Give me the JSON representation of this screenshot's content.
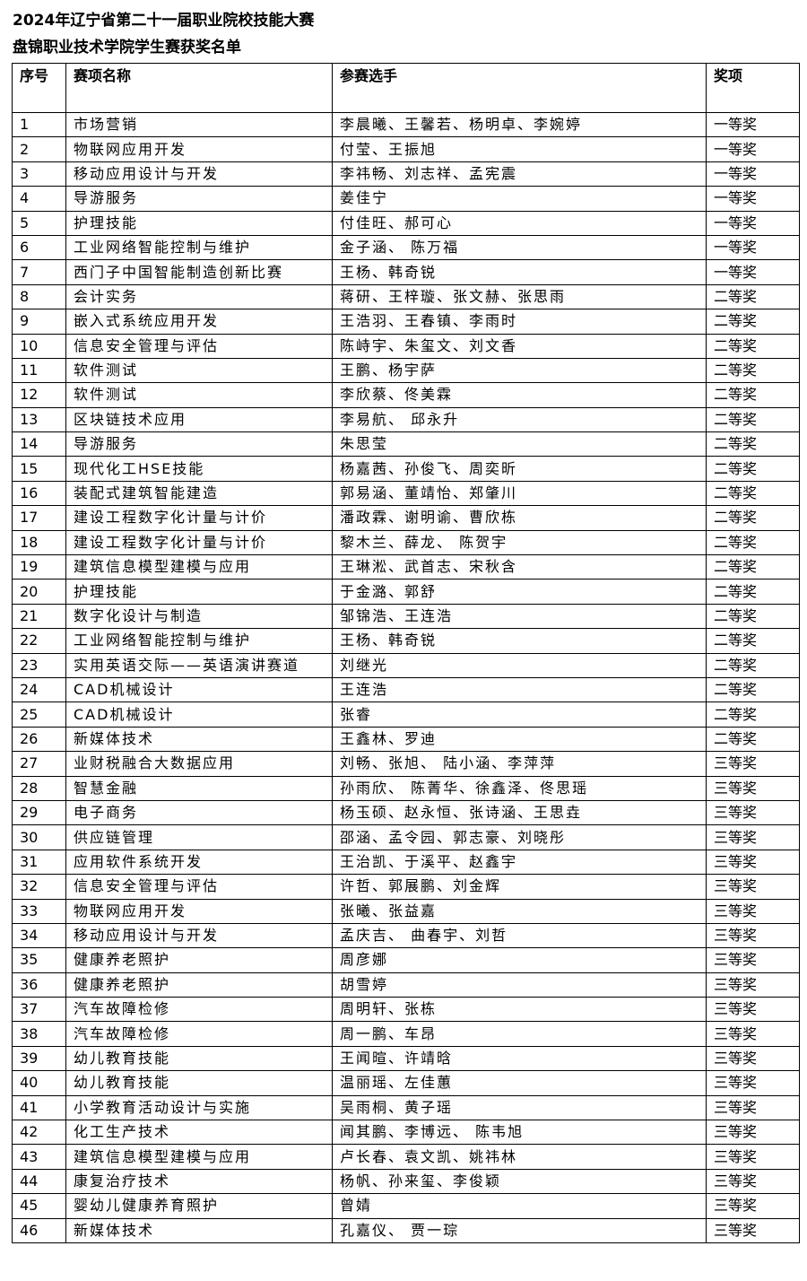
{
  "title_line1": "2024年辽宁省第二十一届职业院校技能大赛",
  "title_line2": "盘锦职业技术学院学生赛获奖名单",
  "columns": {
    "no": "序号",
    "event": "赛项名称",
    "players": "参赛选手",
    "award": "奖项"
  },
  "rows": [
    [
      "1",
      "市场营销",
      "李晨曦、王馨若、杨明卓、李婉婷",
      "一等奖"
    ],
    [
      "2",
      "物联网应用开发",
      "付莹、王振旭",
      "一等奖"
    ],
    [
      "3",
      "移动应用设计与开发",
      "李祎畅、刘志祥、孟宪震",
      "一等奖"
    ],
    [
      "4",
      "导游服务",
      "姜佳宁",
      "一等奖"
    ],
    [
      "5",
      "护理技能",
      "付佳旺、郝可心",
      "一等奖"
    ],
    [
      "6",
      "工业网络智能控制与维护",
      "金子涵、 陈万福",
      "一等奖"
    ],
    [
      "7",
      "西门子中国智能制造创新比赛",
      "王杨、韩奇锐",
      "一等奖"
    ],
    [
      "8",
      "会计实务",
      "蒋研、王梓璇、张文赫、张思雨",
      "二等奖"
    ],
    [
      "9",
      "嵌入式系统应用开发",
      "王浩羽、王春镇、李雨时",
      "二等奖"
    ],
    [
      "10",
      "信息安全管理与评估",
      "陈峙宇、朱玺文、刘文香",
      "二等奖"
    ],
    [
      "11",
      "软件测试",
      "王鹏、杨宇萨",
      "二等奖"
    ],
    [
      "12",
      "软件测试",
      "李欣蔡、佟美霖",
      "二等奖"
    ],
    [
      "13",
      "区块链技术应用",
      "李易航、 邱永升",
      "二等奖"
    ],
    [
      "14",
      "导游服务",
      "朱思莹",
      "二等奖"
    ],
    [
      "15",
      "现代化工HSE技能",
      "杨嘉茜、孙俊飞、周奕昕",
      "二等奖"
    ],
    [
      "16",
      "装配式建筑智能建造",
      "郭易涵、董靖怡、郑肇川",
      "二等奖"
    ],
    [
      "17",
      "建设工程数字化计量与计价",
      "潘政霖、谢明谕、曹欣栋",
      "二等奖"
    ],
    [
      "18",
      "建设工程数字化计量与计价",
      "黎木兰、薛龙、 陈贺宇",
      "二等奖"
    ],
    [
      "19",
      "建筑信息模型建模与应用",
      "王琳淞、武首志、宋秋含",
      "二等奖"
    ],
    [
      "20",
      "护理技能",
      "于金潞、郭舒",
      "二等奖"
    ],
    [
      "21",
      "数字化设计与制造",
      "邹锦浩、王连浩",
      "二等奖"
    ],
    [
      "22",
      "工业网络智能控制与维护",
      "王杨、韩奇锐",
      "二等奖"
    ],
    [
      "23",
      "实用英语交际——英语演讲赛道",
      "刘继光",
      "二等奖"
    ],
    [
      "24",
      "CAD机械设计",
      "王连浩",
      "二等奖"
    ],
    [
      "25",
      "CAD机械设计",
      "张睿",
      "二等奖"
    ],
    [
      "26",
      "新媒体技术",
      "王鑫林、罗迪",
      "二等奖"
    ],
    [
      "27",
      "业财税融合大数据应用",
      "刘畅、张旭、 陆小涵、李萍萍",
      "三等奖"
    ],
    [
      "28",
      "智慧金融",
      "孙雨欣、 陈菁华、徐鑫泽、佟思瑶",
      "三等奖"
    ],
    [
      "29",
      "电子商务",
      "杨玉硕、赵永恒、张诗涵、王思垚",
      "三等奖"
    ],
    [
      "30",
      "供应链管理",
      "邵涵、孟令园、郭志豪、刘晓彤",
      "三等奖"
    ],
    [
      "31",
      "应用软件系统开发",
      "王治凯、于溪平、赵鑫宇",
      "三等奖"
    ],
    [
      "32",
      "信息安全管理与评估",
      "许哲、郭展鹏、刘金辉",
      "三等奖"
    ],
    [
      "33",
      "物联网应用开发",
      "张曦、张益嘉",
      "三等奖"
    ],
    [
      "34",
      "移动应用设计与开发",
      "孟庆吉、 曲春宇、刘哲",
      "三等奖"
    ],
    [
      "35",
      "健康养老照护",
      "周彦娜",
      "三等奖"
    ],
    [
      "36",
      "健康养老照护",
      "胡雪婷",
      "三等奖"
    ],
    [
      "37",
      "汽车故障检修",
      "周明轩、张栋",
      "三等奖"
    ],
    [
      "38",
      "汽车故障检修",
      "周一鹏、车昂",
      "三等奖"
    ],
    [
      "39",
      "幼儿教育技能",
      "王闻暄、许靖晗",
      "三等奖"
    ],
    [
      "40",
      "幼儿教育技能",
      "温丽瑶、左佳蕙",
      "三等奖"
    ],
    [
      "41",
      "小学教育活动设计与实施",
      "吴雨桐、黄子瑶",
      "三等奖"
    ],
    [
      "42",
      "化工生产技术",
      "闻其鹏、李博远、 陈韦旭",
      "三等奖"
    ],
    [
      "43",
      "建筑信息模型建模与应用",
      "卢长春、袁文凯、姚祎林",
      "三等奖"
    ],
    [
      "44",
      "康复治疗技术",
      "杨帆、孙来玺、李俊颖",
      "三等奖"
    ],
    [
      "45",
      "婴幼儿健康养育照护",
      "曾婧",
      "三等奖"
    ],
    [
      "46",
      "新媒体技术",
      "孔嘉仪、 贾一琮",
      "三等奖"
    ]
  ]
}
